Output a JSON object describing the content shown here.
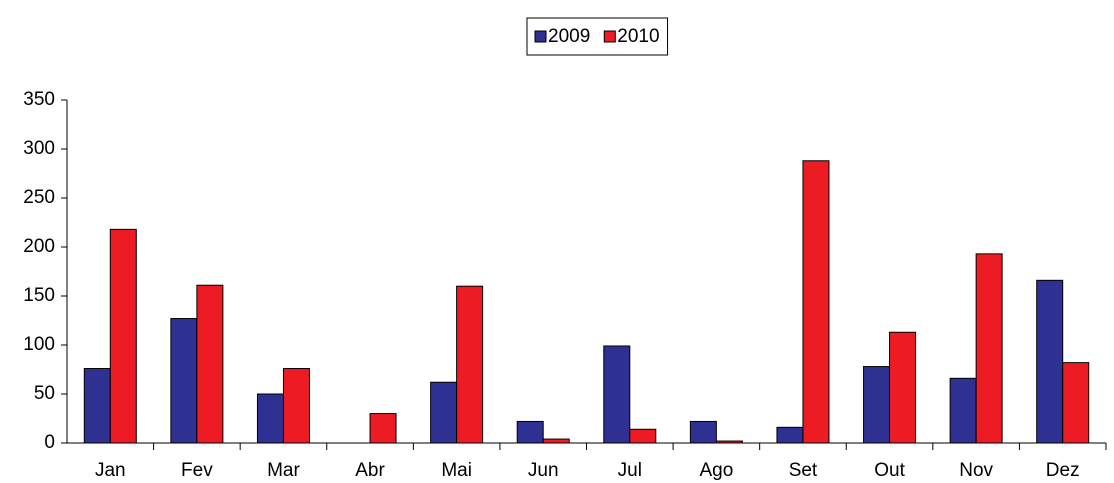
{
  "chart_data": {
    "type": "bar",
    "categories": [
      "Jan",
      "Fev",
      "Mar",
      "Abr",
      "Mai",
      "Jun",
      "Jul",
      "Ago",
      "Set",
      "Out",
      "Nov",
      "Dez"
    ],
    "series": [
      {
        "name": "2009",
        "color": "#2e3192",
        "values": [
          76,
          127,
          50,
          0,
          62,
          22,
          99,
          22,
          16,
          78,
          66,
          166
        ]
      },
      {
        "name": "2010",
        "color": "#ed1c24",
        "values": [
          218,
          161,
          76,
          30,
          160,
          4,
          14,
          2,
          288,
          113,
          193,
          82
        ]
      }
    ],
    "ylim": [
      0,
      350
    ],
    "yticks": [
      0,
      50,
      100,
      150,
      200,
      250,
      300,
      350
    ],
    "grid": false,
    "legend": "top"
  }
}
